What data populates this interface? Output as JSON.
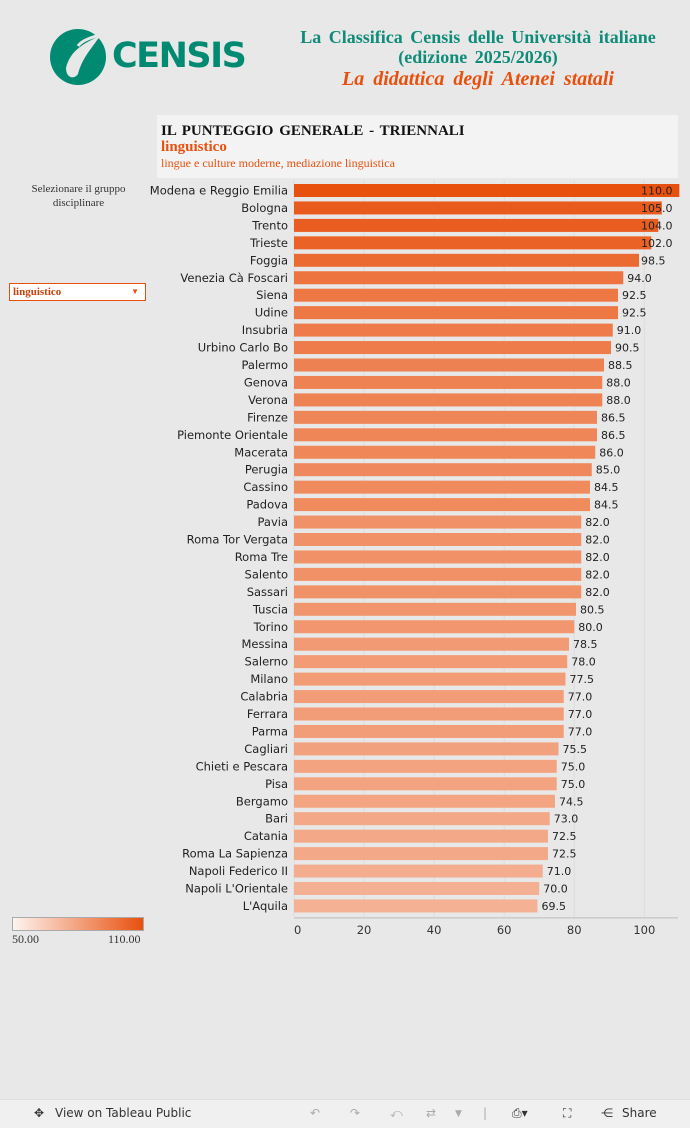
{
  "logo": {
    "text": "CENSIS"
  },
  "header": {
    "line1": "La Classifica Censis delle Università italiane",
    "line2": "(edizione 2025/2026)",
    "line3": "La didattica degli Atenei statali"
  },
  "panel": {
    "title": "IL PUNTEGGIO GENERALE - TRIENNALI",
    "group": "linguistico",
    "subtitle": "lingue e culture moderne, mediazione linguistica"
  },
  "filter": {
    "label": "Selezionare il gruppo disciplinare",
    "selected": "linguistico"
  },
  "legend": {
    "min": "50.00",
    "max": "110.00"
  },
  "colors": {
    "low": "#fdf4ef",
    "high": "#e8500e",
    "accent": "#e8500e",
    "brand": "#008a72"
  },
  "chart_data": {
    "type": "bar",
    "orientation": "horizontal",
    "categories": [
      "Modena e Reggio Emilia",
      "Bologna",
      "Trento",
      "Trieste",
      "Foggia",
      "Venezia Cà Foscari",
      "Siena",
      "Udine",
      "Insubria",
      "Urbino Carlo Bo",
      "Palermo",
      "Genova",
      "Verona",
      "Firenze",
      "Piemonte Orientale",
      "Macerata",
      "Perugia",
      "Cassino",
      "Padova",
      "Pavia",
      "Roma Tor Vergata",
      "Roma Tre",
      "Salento",
      "Sassari",
      "Tuscia",
      "Torino",
      "Messina",
      "Salerno",
      "Milano",
      "Calabria",
      "Ferrara",
      "Parma",
      "Cagliari",
      "Chieti e Pescara",
      "Pisa",
      "Bergamo",
      "Bari",
      "Catania",
      "Roma La Sapienza",
      "Napoli Federico II",
      "Napoli L'Orientale",
      "L'Aquila"
    ],
    "values": [
      110.0,
      105.0,
      104.0,
      102.0,
      98.5,
      94.0,
      92.5,
      92.5,
      91.0,
      90.5,
      88.5,
      88.0,
      88.0,
      86.5,
      86.5,
      86.0,
      85.0,
      84.5,
      84.5,
      82.0,
      82.0,
      82.0,
      82.0,
      82.0,
      80.5,
      80.0,
      78.5,
      78.0,
      77.5,
      77.0,
      77.0,
      77.0,
      75.5,
      75.0,
      75.0,
      74.5,
      73.0,
      72.5,
      72.5,
      71.0,
      70.0,
      69.5
    ],
    "labels": [
      "110.0",
      "105.0",
      "104.0",
      "102.0",
      "98.5",
      "94.0",
      "92.5",
      "92.5",
      "91.0",
      "90.5",
      "88.5",
      "88.0",
      "88.0",
      "86.5",
      "86.5",
      "86.0",
      "85.0",
      "84.5",
      "84.5",
      "82.0",
      "82.0",
      "82.0",
      "82.0",
      "82.0",
      "80.5",
      "80.0",
      "78.5",
      "78.0",
      "77.5",
      "77.0",
      "77.0",
      "77.0",
      "75.5",
      "75.0",
      "75.0",
      "74.5",
      "73.0",
      "72.5",
      "72.5",
      "71.0",
      "70.0",
      "69.5"
    ],
    "xlim": [
      0,
      110
    ],
    "xticks": [
      "0",
      "20",
      "40",
      "60",
      "80",
      "100"
    ],
    "xtick_values": [
      0,
      20,
      40,
      60,
      80,
      100
    ],
    "color_range": [
      50,
      110
    ]
  },
  "toolbar": {
    "view_label": "View on Tableau Public",
    "share_label": "Share"
  }
}
